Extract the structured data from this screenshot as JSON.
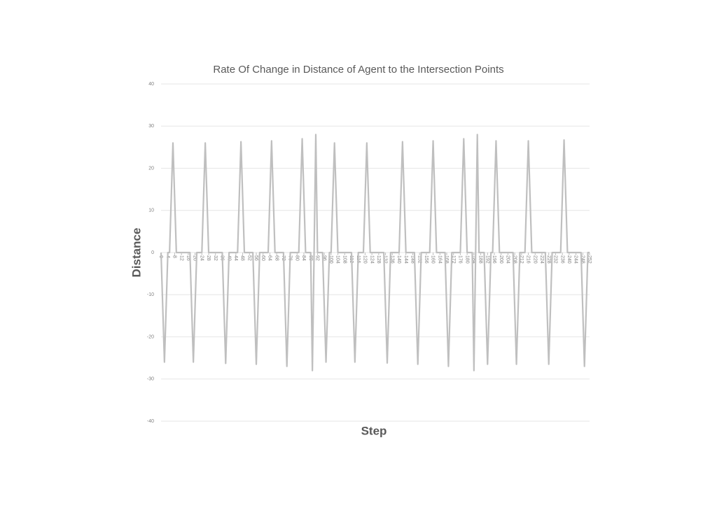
{
  "chart_data": {
    "type": "line",
    "title": "Rate Of Change in Distance of Agent to the Intersection Points",
    "x_label": "Step",
    "y_label": "Distance",
    "x": [
      0,
      2,
      4,
      5,
      7,
      9,
      17,
      19,
      21,
      24,
      26,
      28,
      36,
      38,
      40,
      45,
      47,
      49,
      54,
      56,
      58,
      63,
      65,
      67,
      72,
      74,
      76,
      81,
      83,
      85,
      88,
      89,
      90,
      91,
      92,
      95,
      97,
      99,
      100,
      102,
      104,
      112,
      114,
      116,
      119,
      121,
      123,
      131,
      133,
      135,
      140,
      142,
      144,
      149,
      151,
      153,
      158,
      160,
      162,
      167,
      169,
      171,
      176,
      178,
      180,
      183,
      184,
      185,
      186,
      187,
      190,
      192,
      194,
      195,
      197,
      199,
      207,
      209,
      211,
      214,
      216,
      218,
      226,
      228,
      230,
      235,
      237,
      239,
      247,
      249,
      251,
      252
    ],
    "values": [
      0,
      -26,
      0,
      0,
      26,
      0,
      0,
      -26,
      0,
      0,
      26,
      0,
      0,
      -26.3,
      0,
      0,
      26.3,
      0,
      0,
      -26.5,
      0,
      0,
      26.5,
      0,
      0,
      -27,
      0,
      0,
      27,
      0,
      0,
      -28,
      0,
      28,
      0,
      0,
      -26,
      0,
      0,
      26,
      0,
      0,
      -26,
      0,
      0,
      26,
      0,
      0,
      -26.2,
      0,
      0,
      26.3,
      0,
      0,
      -26.5,
      0,
      0,
      26.5,
      0,
      0,
      -27,
      0,
      0,
      27,
      0,
      0,
      -28,
      0,
      28,
      0,
      0,
      -26.5,
      0,
      0,
      26.5,
      0,
      0,
      -26.5,
      0,
      0,
      26.5,
      0,
      0,
      -26.5,
      0,
      0,
      26.7,
      0,
      0,
      -27,
      0,
      0
    ],
    "color": "#bfbfbf",
    "xlim": [
      0,
      252
    ],
    "xticks": [
      0,
      4,
      8,
      12,
      16,
      20,
      24,
      28,
      32,
      36,
      40,
      44,
      48,
      52,
      56,
      60,
      64,
      68,
      72,
      76,
      80,
      84,
      88,
      92,
      96,
      100,
      104,
      108,
      112,
      116,
      120,
      124,
      128,
      132,
      136,
      140,
      144,
      148,
      152,
      156,
      160,
      164,
      168,
      172,
      176,
      180,
      184,
      188,
      192,
      196,
      200,
      204,
      208,
      212,
      216,
      220,
      224,
      228,
      232,
      236,
      240,
      244,
      248,
      252
    ],
    "ylim": [
      -40,
      40
    ],
    "yticks": [
      -40,
      -30,
      -20,
      -10,
      0,
      10,
      20,
      30,
      40
    ],
    "grid": true
  }
}
